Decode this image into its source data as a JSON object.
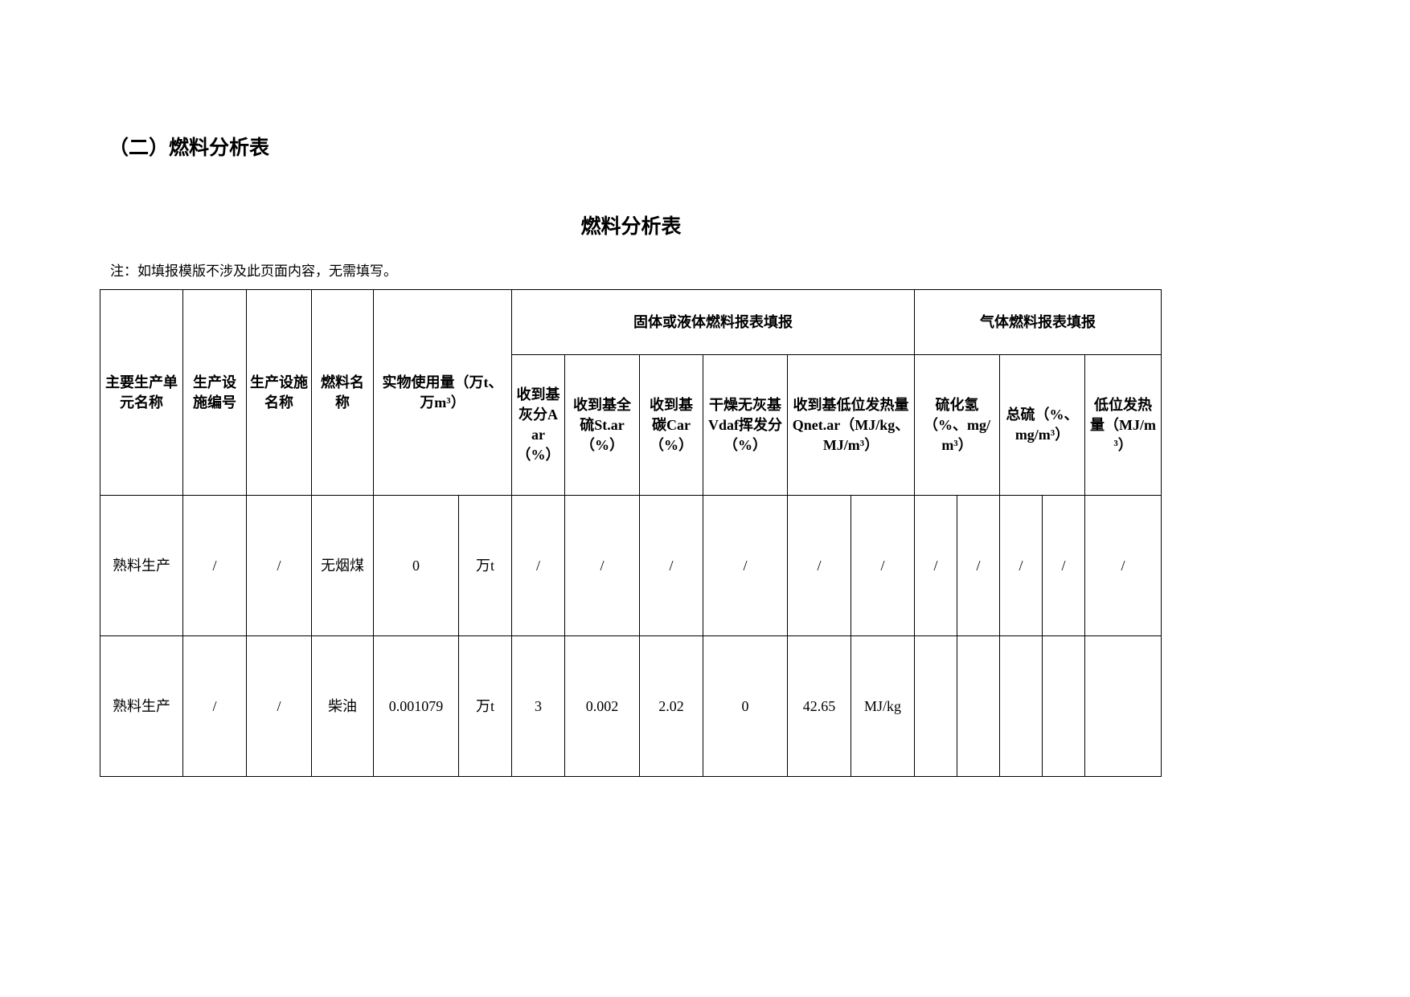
{
  "section_heading": "（二）燃料分析表",
  "table_title": "燃料分析表",
  "note": "注：如填报模版不涉及此页面内容，无需填写。",
  "headers": {
    "unit": "主要生产单元名称",
    "facility_id": "生产设施编号",
    "facility_name": "生产设施名称",
    "fuel_name": "燃料名称",
    "usage": "实物使用量（万t、万m³）",
    "solid_liquid": "固体或液体燃料报表填报",
    "gas": "气体燃料报表填报",
    "aar": "收到基灰分Aar（%）",
    "star": "收到基全硫St.ar（%）",
    "car": "收到基碳Car（%）",
    "vdaf": "干燥无灰基Vdaf挥发分（%）",
    "qnet": "收到基低位发热量Qnet.ar（MJ/kg、MJ/m³）",
    "h2s": "硫化氢（%、mg/m³）",
    "total_s": "总硫（%、mg/m³）",
    "low_heat": "低位发热量（MJ/m³）"
  },
  "rows": [
    [
      "熟料生产",
      "/",
      "/",
      "无烟煤",
      "0",
      "万t",
      "/",
      "/",
      "/",
      "/",
      "/",
      "/",
      "/",
      "/",
      "/",
      "/",
      "/"
    ],
    [
      "熟料生产",
      "/",
      "/",
      "柴油",
      "0.001079",
      "万t",
      "3",
      "0.002",
      "2.02",
      "0",
      "42.65",
      "MJ/kg",
      "",
      "",
      "",
      "",
      ""
    ]
  ]
}
